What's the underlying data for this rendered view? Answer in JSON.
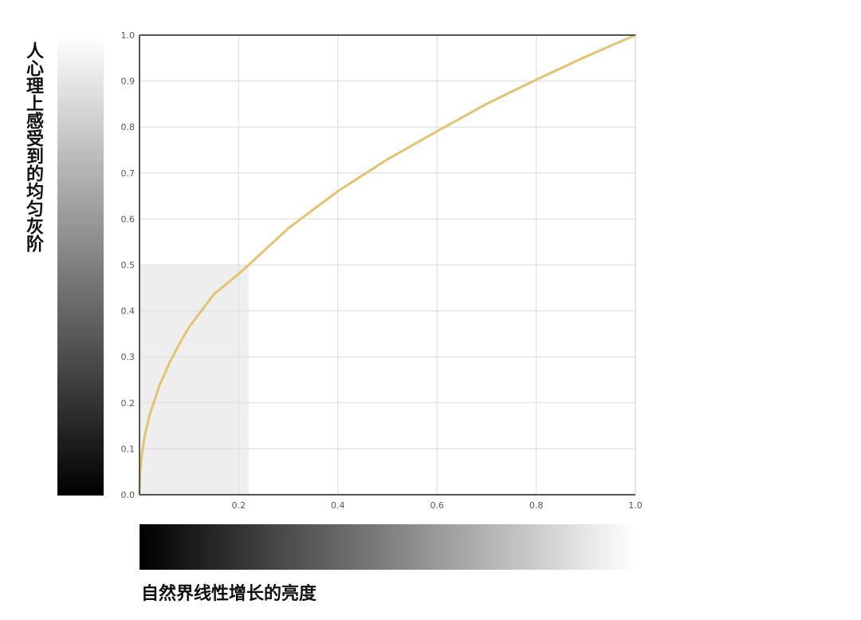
{
  "chart_data": {
    "type": "line",
    "title": "",
    "xlabel": "自然界线性增长的亮度",
    "ylabel": "人心理上感受到的均匀灰阶",
    "xlim": [
      0,
      1
    ],
    "ylim": [
      0,
      1
    ],
    "grid": true,
    "legend": "none",
    "x_ticks": [
      "0.2",
      "0.4",
      "0.6",
      "0.8",
      "1.0"
    ],
    "y_ticks": [
      "0.0",
      "0.1",
      "0.2",
      "0.3",
      "0.4",
      "0.5",
      "0.6",
      "0.7",
      "0.8",
      "0.9",
      "1.0"
    ],
    "series": [
      {
        "x": [
          0,
          0.001,
          0.005,
          0.01,
          0.02,
          0.04,
          0.06,
          0.08,
          0.1,
          0.15,
          0.2,
          0.22,
          0.3,
          0.4,
          0.5,
          0.6,
          0.7,
          0.8,
          0.9,
          1.0
        ],
        "y": [
          0,
          0.0437,
          0.0902,
          0.1245,
          0.1719,
          0.2373,
          0.2856,
          0.3276,
          0.3646,
          0.4363,
          0.4804,
          0.5,
          0.5797,
          0.6604,
          0.7297,
          0.7908,
          0.8503,
          0.903,
          0.9532,
          1.0
        ],
        "color": "#dfc06a"
      }
    ],
    "annotations": [
      {
        "type": "shaded_region",
        "x_range": [
          0,
          0.22
        ],
        "y_range": [
          0,
          0.5
        ],
        "color": "#eeeeee"
      }
    ],
    "gradients": {
      "vertical_bar": [
        "#000000",
        "#ffffff"
      ],
      "horizontal_bar": [
        "#000000",
        "#ffffff"
      ]
    }
  }
}
